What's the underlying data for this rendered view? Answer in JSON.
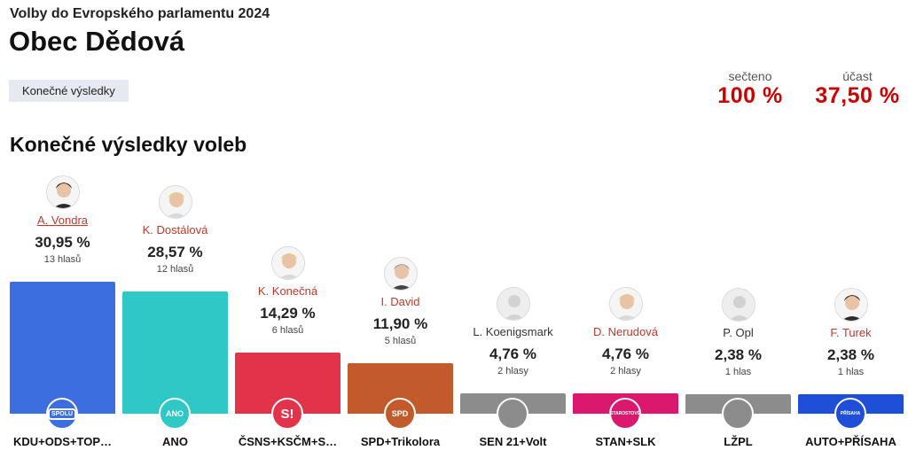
{
  "header": {
    "kicker": "Volby do Evropského parlamentu 2024",
    "place": "Obec Dědová",
    "tag": "Konečné výsledky",
    "counted_label": "sečteno",
    "counted_value": "100 %",
    "turnout_label": "účast",
    "turnout_value": "37,50 %"
  },
  "section_title": "Konečné výsledky voleb",
  "chart_data": {
    "type": "bar",
    "title": "Konečné výsledky voleb",
    "ylim": [
      0,
      100
    ],
    "series": [
      {
        "party": "KDU+ODS+TOP…",
        "candidate": "A. Vondra",
        "pct_label": "30,95 %",
        "pct": 30.95,
        "votes_label": "13 hlasů",
        "color": "#3d6ee0",
        "logo": "SPOLU",
        "candidate_style": "link",
        "avatar": "photo-dark"
      },
      {
        "party": "ANO",
        "candidate": "K. Dostálová",
        "pct_label": "28,57 %",
        "pct": 28.57,
        "votes_label": "12 hlasů",
        "color": "#2ec9c6",
        "logo": "ANO",
        "candidate_style": "red",
        "avatar": "photo-blonde"
      },
      {
        "party": "ČSNS+KSČM+S…",
        "candidate": "K. Konečná",
        "pct_label": "14,29 %",
        "pct": 14.29,
        "votes_label": "6 hlasů",
        "color": "#e2334b",
        "logo": "S!",
        "candidate_style": "red",
        "avatar": "photo-blonde"
      },
      {
        "party": "SPD+Trikolora",
        "candidate": "I. David",
        "pct_label": "11,90 %",
        "pct": 11.9,
        "votes_label": "5 hlasů",
        "color": "#c25a2b",
        "logo": "SPD",
        "candidate_style": "red",
        "avatar": "photo-grey"
      },
      {
        "party": "SEN 21+Volt",
        "candidate": "L. Koenigsmark",
        "pct_label": "4,76 %",
        "pct": 4.76,
        "votes_label": "2 hlasy",
        "color": "#8c8c8c",
        "logo": "",
        "candidate_style": "plain",
        "avatar": "placeholder"
      },
      {
        "party": "STAN+SLK",
        "candidate": "D. Nerudová",
        "pct_label": "4,76 %",
        "pct": 4.76,
        "votes_label": "2 hlasy",
        "color": "#d9186e",
        "logo": "STAROSTOVÉ",
        "candidate_style": "red",
        "avatar": "photo-blonde"
      },
      {
        "party": "LŽPL",
        "candidate": "P. Opl",
        "pct_label": "2,38 %",
        "pct": 2.38,
        "votes_label": "1 hlas",
        "color": "#8c8c8c",
        "logo": "",
        "candidate_style": "plain",
        "avatar": "placeholder"
      },
      {
        "party": "AUTO+PŘÍSAHA",
        "candidate": "F. Turek",
        "pct_label": "2,38 %",
        "pct": 2.38,
        "votes_label": "1 hlas",
        "color": "#1f4fd6",
        "logo": "PŘÍSAHA",
        "candidate_style": "red",
        "avatar": "photo-dark"
      }
    ]
  }
}
